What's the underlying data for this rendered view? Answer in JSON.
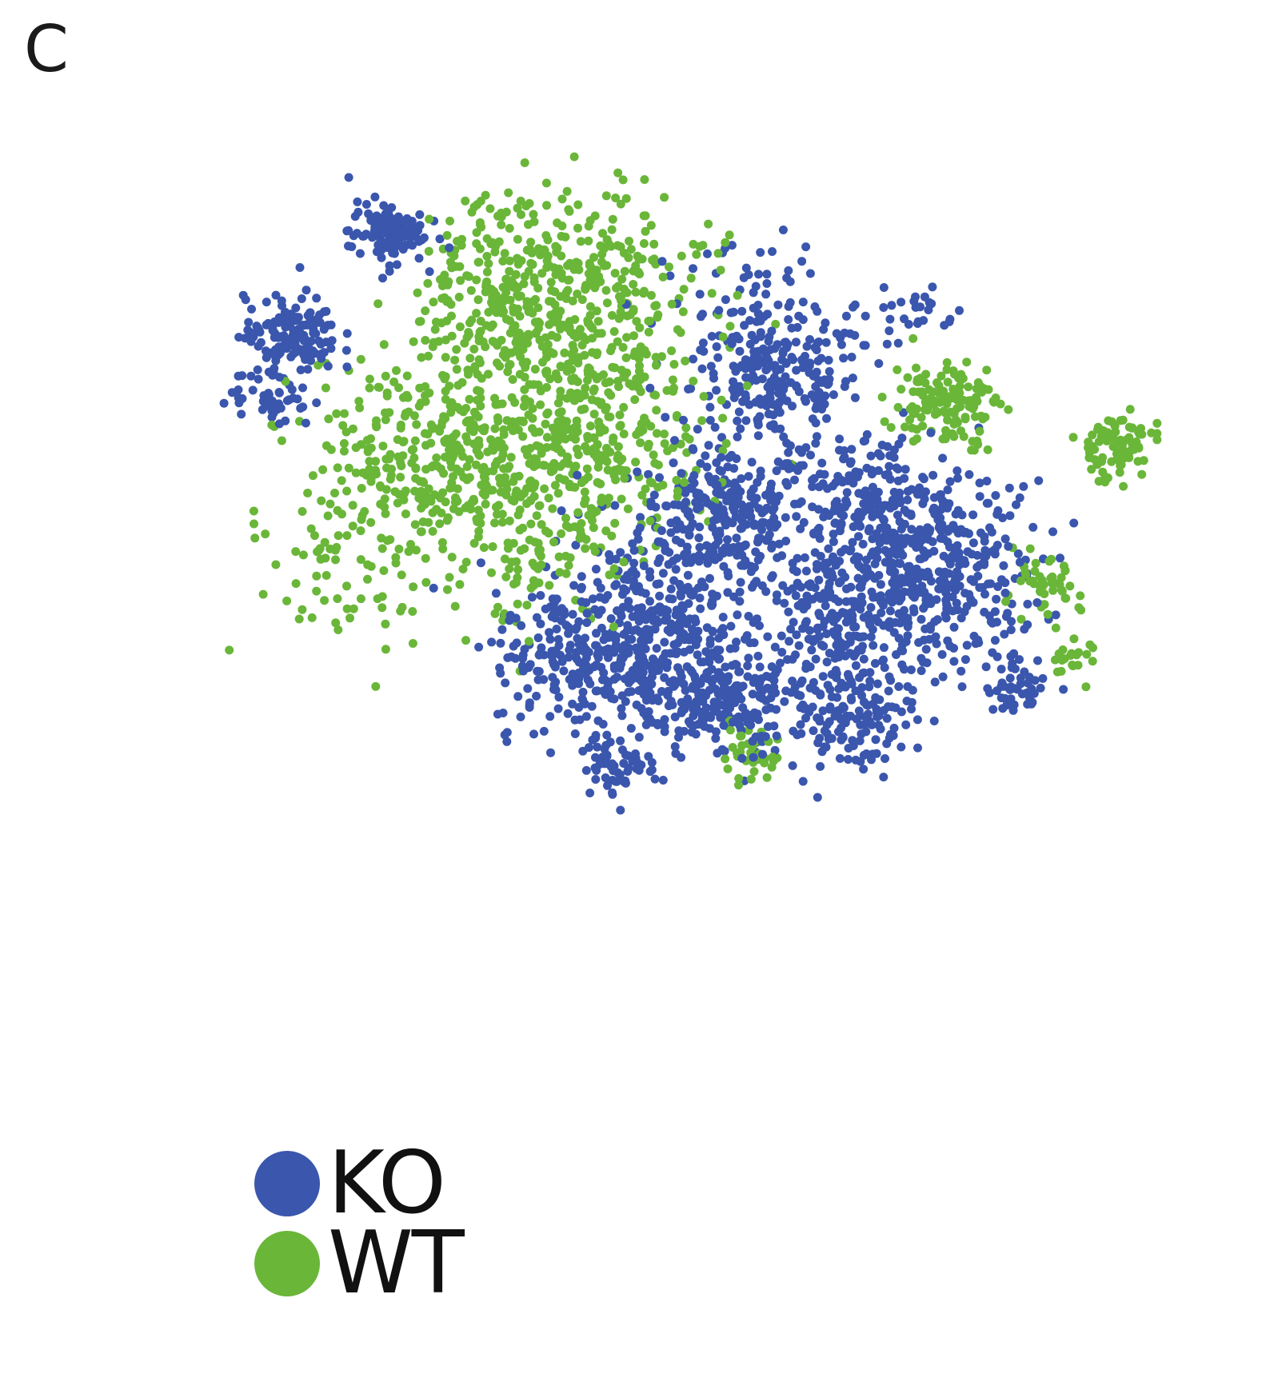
{
  "panel_label": "C",
  "chart_data": {
    "type": "scatter",
    "title": "",
    "xlabel": "",
    "ylabel": "",
    "axes_shown": false,
    "grid": false,
    "legend_placement": "bottom-left",
    "xlim": [
      0,
      100
    ],
    "ylim": [
      0,
      100
    ],
    "series": [
      {
        "name": "KO",
        "color": "#3a56ad",
        "clusters": [
          {
            "x": 58,
            "y": 52,
            "spread": 4,
            "n": 260
          },
          {
            "x": 63,
            "y": 67,
            "spread": 4,
            "n": 200
          },
          {
            "x": 72,
            "y": 52,
            "spread": 5,
            "n": 280
          },
          {
            "x": 78,
            "y": 45,
            "spread": 5,
            "n": 300
          },
          {
            "x": 70,
            "y": 38,
            "spread": 4,
            "n": 220
          },
          {
            "x": 50,
            "y": 40,
            "spread": 5,
            "n": 260
          },
          {
            "x": 54,
            "y": 33,
            "spread": 5,
            "n": 220
          },
          {
            "x": 44,
            "y": 35,
            "spread": 4,
            "n": 160
          },
          {
            "x": 70,
            "y": 28,
            "spread": 3,
            "n": 120
          },
          {
            "x": 61,
            "y": 75,
            "spread": 5,
            "n": 90
          },
          {
            "x": 26,
            "y": 85,
            "spread": 1.8,
            "n": 110
          },
          {
            "x": 17,
            "y": 73,
            "spread": 2.2,
            "n": 140
          },
          {
            "x": 15,
            "y": 66,
            "spread": 2,
            "n": 50
          },
          {
            "x": 48,
            "y": 23,
            "spread": 1.8,
            "n": 60
          },
          {
            "x": 86,
            "y": 32,
            "spread": 1.6,
            "n": 45
          },
          {
            "x": 76,
            "y": 76,
            "spread": 2,
            "n": 25
          },
          {
            "x": 58,
            "y": 30,
            "spread": 3,
            "n": 120
          }
        ]
      },
      {
        "name": "WT",
        "color": "#6ab639",
        "clusters": [
          {
            "x": 42,
            "y": 70,
            "spread": 7,
            "n": 420
          },
          {
            "x": 30,
            "y": 58,
            "spread": 6,
            "n": 320
          },
          {
            "x": 45,
            "y": 57,
            "spread": 5,
            "n": 220
          },
          {
            "x": 38,
            "y": 80,
            "spread": 5,
            "n": 160
          },
          {
            "x": 48,
            "y": 82,
            "spread": 5,
            "n": 110
          },
          {
            "x": 79,
            "y": 65,
            "spread": 2.5,
            "n": 130
          },
          {
            "x": 95,
            "y": 60,
            "spread": 2,
            "n": 80
          },
          {
            "x": 88,
            "y": 43,
            "spread": 1.8,
            "n": 50
          },
          {
            "x": 60,
            "y": 24,
            "spread": 1.5,
            "n": 40
          },
          {
            "x": 91,
            "y": 35,
            "spread": 1.2,
            "n": 20
          },
          {
            "x": 40,
            "y": 47,
            "spread": 4,
            "n": 80
          },
          {
            "x": 23,
            "y": 45,
            "spread": 5,
            "n": 60
          }
        ]
      }
    ]
  }
}
